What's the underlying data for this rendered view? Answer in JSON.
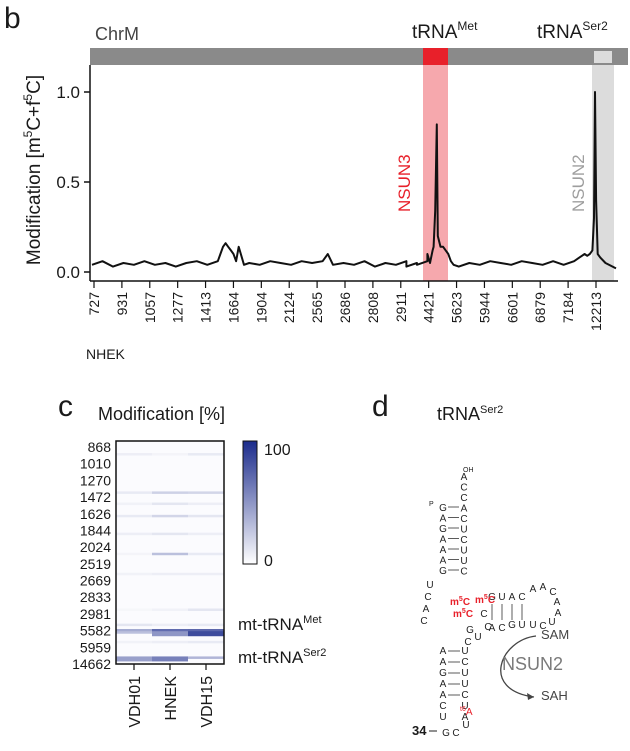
{
  "panel_b": {
    "letter": "b",
    "chromosome_label": "ChrM",
    "trna_met": {
      "base": "tRNA",
      "sup": "Met"
    },
    "trna_ser2": {
      "base": "tRNA",
      "sup": "Ser2"
    },
    "ylabel_parts": [
      "Modification [m",
      "5",
      "C+f",
      "5",
      "C]"
    ],
    "enzyme_labels": [
      "NSUN3",
      "NSUN2"
    ],
    "sample_label": "NHEK",
    "colors": {
      "nsun3": "#e8202a",
      "nsun3_band": "#f6a8ad",
      "nsun2": "#9e9e9e",
      "nsun2_band": "#dcdcdc",
      "chrom_bar": "#8a8a8a",
      "trace": "#111111"
    }
  },
  "chart_data": [
    {
      "type": "line",
      "panel": "b",
      "title": "",
      "xlabel": "",
      "ylabel": "Modification [m5C+f5C]",
      "ylim": [
        -0.05,
        1.15
      ],
      "yticks": [
        0.0,
        0.5,
        1.0
      ],
      "ytick_labels": [
        "0.0",
        "0.5",
        "1.0"
      ],
      "xtick_labels": [
        "727",
        "931",
        "1057",
        "1277",
        "1413",
        "1664",
        "1904",
        "2124",
        "2565",
        "2686",
        "2808",
        "2911",
        "4421",
        "5623",
        "5944",
        "6601",
        "6879",
        "7184",
        "12213"
      ],
      "series": [
        {
          "name": "NHEK",
          "x_fraction": [
            0.0,
            0.02,
            0.04,
            0.06,
            0.08,
            0.1,
            0.12,
            0.14,
            0.16,
            0.18,
            0.2,
            0.22,
            0.24,
            0.245,
            0.25,
            0.255,
            0.26,
            0.265,
            0.27,
            0.275,
            0.28,
            0.29,
            0.3,
            0.32,
            0.34,
            0.36,
            0.38,
            0.4,
            0.42,
            0.44,
            0.45,
            0.46,
            0.48,
            0.5,
            0.52,
            0.54,
            0.56,
            0.58,
            0.6,
            0.6,
            0.62,
            0.62,
            0.64,
            0.64,
            0.645,
            0.65,
            0.652,
            0.655,
            0.658,
            0.66,
            0.665,
            0.67,
            0.675,
            0.68,
            0.685,
            0.69,
            0.7,
            0.72,
            0.74,
            0.76,
            0.78,
            0.8,
            0.82,
            0.84,
            0.86,
            0.88,
            0.9,
            0.92,
            0.93,
            0.94,
            0.945,
            0.95,
            0.955,
            0.958,
            0.96,
            0.962,
            0.965,
            0.97,
            0.98,
            1.0
          ],
          "values": [
            0.04,
            0.06,
            0.03,
            0.05,
            0.04,
            0.06,
            0.04,
            0.05,
            0.03,
            0.05,
            0.06,
            0.04,
            0.06,
            0.1,
            0.14,
            0.16,
            0.14,
            0.12,
            0.1,
            0.06,
            0.14,
            0.04,
            0.05,
            0.04,
            0.06,
            0.05,
            0.04,
            0.06,
            0.05,
            0.06,
            0.1,
            0.04,
            0.05,
            0.04,
            0.06,
            0.03,
            0.05,
            0.04,
            0.06,
            0.03,
            0.05,
            0.04,
            0.06,
            0.1,
            0.05,
            0.12,
            0.14,
            0.34,
            0.82,
            0.2,
            0.14,
            0.14,
            0.12,
            0.1,
            0.06,
            0.04,
            0.03,
            0.05,
            0.04,
            0.06,
            0.05,
            0.04,
            0.06,
            0.05,
            0.04,
            0.06,
            0.04,
            0.06,
            0.08,
            0.1,
            0.09,
            0.1,
            0.12,
            0.3,
            1.0,
            0.4,
            0.1,
            0.08,
            0.05,
            0.02
          ]
        }
      ],
      "annotations": [
        "NSUN3",
        "NSUN2"
      ]
    },
    {
      "type": "heatmap",
      "panel": "c",
      "title": "Modification [%]",
      "columns": [
        "VDH01",
        "HNEK",
        "VDH15"
      ],
      "row_labels": [
        "868",
        "1010",
        "1270",
        "1472",
        "1626",
        "1844",
        "2024",
        "2519",
        "2669",
        "2833",
        "2981",
        "5582",
        "5959",
        "14662"
      ],
      "colorbar": {
        "min": 0,
        "max": 100,
        "ticks": [
          "100",
          "0"
        ],
        "low_color": "#ffffff",
        "high_color": "#1c2c8c"
      },
      "highlights": [
        {
          "row_fraction": 0.063,
          "values": [
            8,
            5,
            10
          ]
        },
        {
          "row_fraction": 0.235,
          "values": [
            10,
            22,
            20
          ]
        },
        {
          "row_fraction": 0.285,
          "values": [
            6,
            12,
            8
          ]
        },
        {
          "row_fraction": 0.34,
          "values": [
            10,
            20,
            12
          ]
        },
        {
          "row_fraction": 0.42,
          "values": [
            8,
            12,
            8
          ]
        },
        {
          "row_fraction": 0.51,
          "values": [
            5,
            30,
            10
          ]
        },
        {
          "row_fraction": 0.6,
          "values": [
            6,
            8,
            8
          ]
        },
        {
          "row_fraction": 0.76,
          "values": [
            4,
            6,
            12
          ]
        },
        {
          "row_fraction": 0.828,
          "values": [
            12,
            8,
            10
          ]
        },
        {
          "row_fraction": 0.852,
          "values": [
            40,
            70,
            72
          ]
        },
        {
          "row_fraction": 0.862,
          "values": [
            30,
            50,
            85
          ]
        },
        {
          "row_fraction": 0.905,
          "values": [
            6,
            8,
            10
          ]
        },
        {
          "row_fraction": 0.975,
          "values": [
            45,
            60,
            35
          ]
        }
      ],
      "row_annotations": [
        {
          "base": "mt-tRNA",
          "sup": "Met"
        },
        {
          "base": "mt-tRNA",
          "sup": "Ser2"
        }
      ]
    }
  ],
  "panel_c": {
    "letter": "c"
  },
  "panel_d": {
    "letter": "d",
    "title": {
      "base": "tRNA",
      "sup": "Ser2"
    },
    "oh_label": "OH",
    "p_label": "P",
    "acceptor_5p": [
      "G",
      "A",
      "G",
      "A",
      "A",
      "A",
      "G"
    ],
    "acceptor_3p": [
      "A",
      "C",
      "C",
      "A",
      "C",
      "U",
      "C",
      "U",
      "U",
      "C"
    ],
    "dstem_bases": [
      "U",
      "C",
      "A",
      "C"
    ],
    "t_arm_bases": [
      "G",
      "U",
      "A",
      "C",
      "A",
      "A",
      "C",
      "A",
      "A",
      "U",
      "C",
      "U",
      "U",
      "G",
      "U",
      "C",
      "A",
      "U",
      "G",
      "C"
    ],
    "mod_labels": [
      "m5C",
      "m5C",
      "m5C"
    ],
    "anticodon_5p": [
      "A",
      "A",
      "G",
      "A",
      "A",
      "C",
      "U"
    ],
    "anticodon_3p": [
      "U",
      "C",
      "U",
      "U",
      "C",
      "U",
      "A"
    ],
    "loop_bases": [
      "G",
      "C",
      "U"
    ],
    "t6a": {
      "sup": "t6",
      "base": "A"
    },
    "position_34": "34",
    "sam": "SAM",
    "sah": "SAH",
    "enzyme": "NSUN2"
  }
}
